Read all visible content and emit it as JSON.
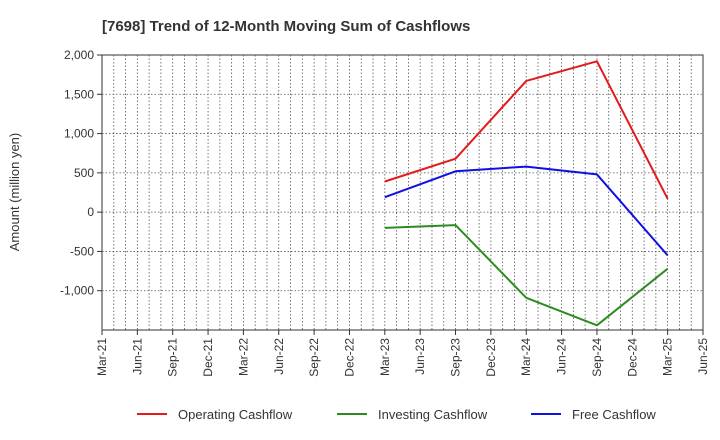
{
  "chart_data": {
    "type": "line",
    "title": "[7698]  Trend of 12-Month Moving Sum of Cashflows",
    "xlabel": "",
    "ylabel": "Amount (million yen)",
    "categories": [
      "Mar-21",
      "Jun-21",
      "Sep-21",
      "Dec-21",
      "Mar-22",
      "Jun-22",
      "Sep-22",
      "Dec-22",
      "Mar-23",
      "Jun-23",
      "Sep-23",
      "Dec-23",
      "Mar-24",
      "Jun-24",
      "Sep-24",
      "Dec-24",
      "Mar-25",
      "Jun-25"
    ],
    "ylim": [
      -1500,
      2000
    ],
    "yticks": [
      2000,
      1500,
      1000,
      500,
      0,
      -500,
      -1000
    ],
    "ytick_labels": [
      "2,000",
      "1,500",
      "1,000",
      "500",
      "0",
      "-500",
      "-1,000"
    ],
    "grid": true,
    "legend_position": "bottom",
    "series": [
      {
        "name": "Operating Cashflow",
        "color": "#e31a1c",
        "points": [
          [
            "Mar-23",
            390
          ],
          [
            "Sep-23",
            680
          ],
          [
            "Mar-24",
            1670
          ],
          [
            "Sep-24",
            1920
          ],
          [
            "Mar-25",
            170
          ]
        ]
      },
      {
        "name": "Investing Cashflow",
        "color": "#2e8b22",
        "points": [
          [
            "Mar-23",
            -200
          ],
          [
            "Sep-23",
            -165
          ],
          [
            "Mar-24",
            -1090
          ],
          [
            "Sep-24",
            -1440
          ],
          [
            "Mar-25",
            -720
          ]
        ]
      },
      {
        "name": "Free Cashflow",
        "color": "#1010e0",
        "points": [
          [
            "Mar-23",
            190
          ],
          [
            "Sep-23",
            520
          ],
          [
            "Mar-24",
            580
          ],
          [
            "Sep-24",
            480
          ],
          [
            "Mar-25",
            -550
          ]
        ]
      }
    ]
  }
}
